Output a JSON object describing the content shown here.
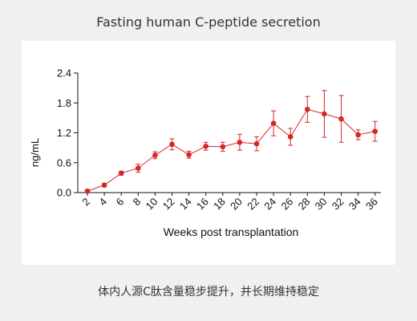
{
  "title": "Fasting human C-peptide secretion",
  "caption": "体内人源C肽含量稳步提升，并长期维持稳定",
  "colors": {
    "series": "#d62728",
    "axis": "#111111",
    "background": "#f0f0f0",
    "panel": "#ffffff"
  },
  "chart_data": {
    "type": "line",
    "xlabel": "Weeks post transplantation",
    "ylabel": "ng/mL",
    "ylim": [
      0,
      2.4
    ],
    "yticks": [
      "0.0",
      "0.6",
      "1.2",
      "1.8",
      "2.4"
    ],
    "x": [
      2,
      4,
      6,
      8,
      10,
      12,
      14,
      16,
      18,
      20,
      22,
      24,
      26,
      28,
      30,
      32,
      34,
      36
    ],
    "series": [
      {
        "values": [
          0.03,
          0.15,
          0.39,
          0.49,
          0.75,
          0.97,
          0.76,
          0.93,
          0.92,
          1.01,
          0.98,
          1.39,
          1.12,
          1.67,
          1.58,
          1.48,
          1.16,
          1.23
        ],
        "error": [
          0.02,
          0.03,
          0.04,
          0.08,
          0.07,
          0.11,
          0.07,
          0.08,
          0.09,
          0.16,
          0.14,
          0.25,
          0.17,
          0.26,
          0.47,
          0.47,
          0.1,
          0.2
        ]
      }
    ],
    "grid": false,
    "legend": "none"
  }
}
